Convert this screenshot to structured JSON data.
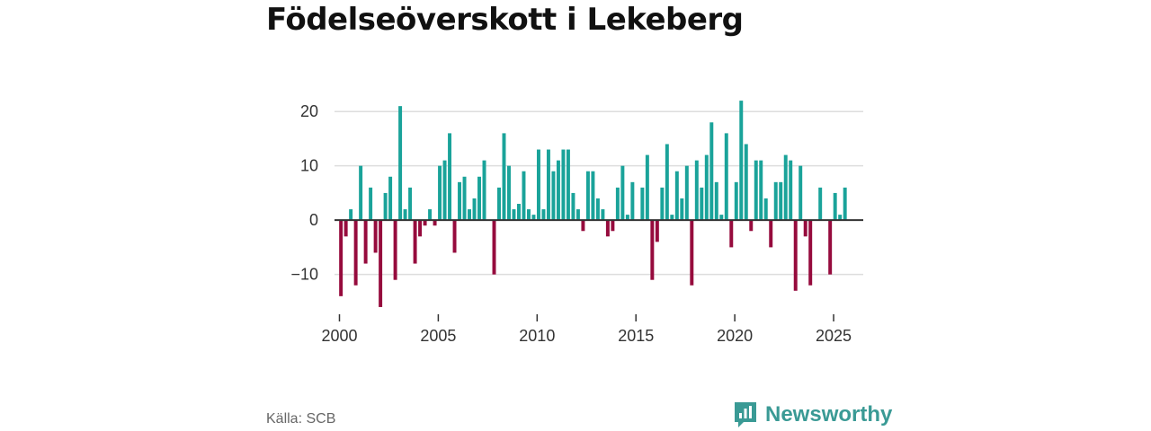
{
  "title": "Födelseöverskott i Lekeberg",
  "source": "Källa: SCB",
  "brand": {
    "name": "Newsworthy",
    "icon": "newsworthy-logo-icon",
    "color": "#3a9a95"
  },
  "colors": {
    "positive": "#1aa39a",
    "negative": "#960b3d",
    "grid": "#dddddd",
    "zero": "#333333"
  },
  "chart_data": {
    "type": "bar",
    "title": "Födelseöverskott i Lekeberg",
    "xlabel": "",
    "ylabel": "",
    "frequency": "quarterly",
    "start": "2000 Q1",
    "xlim": [
      1999.75,
      2026.5
    ],
    "ylim": [
      -17,
      24
    ],
    "xticks": [
      2000,
      2005,
      2010,
      2015,
      2020,
      2025
    ],
    "yticks": [
      -10,
      0,
      10,
      20
    ],
    "ytick_labels": [
      "−10",
      "0",
      "10",
      "20"
    ],
    "grid": true,
    "legend": "none",
    "values": [
      -14,
      -3,
      2,
      -12,
      10,
      -8,
      6,
      -6,
      -16,
      5,
      8,
      -11,
      21,
      2,
      6,
      -8,
      -3,
      -1,
      2,
      -1,
      10,
      11,
      16,
      -6,
      7,
      8,
      2,
      4,
      8,
      11,
      0,
      -10,
      6,
      16,
      10,
      2,
      3,
      9,
      2,
      1,
      13,
      2,
      13,
      9,
      11,
      13,
      13,
      5,
      2,
      -2,
      9,
      9,
      4,
      2,
      -3,
      -2,
      6,
      10,
      1,
      7,
      0,
      6,
      12,
      -11,
      -4,
      6,
      14,
      1,
      9,
      4,
      10,
      -12,
      11,
      6,
      12,
      18,
      7,
      1,
      16,
      -5,
      7,
      22,
      14,
      -2,
      11,
      11,
      4,
      -5,
      7,
      7,
      12,
      11,
      -13,
      10,
      -3,
      -12,
      0,
      6,
      0,
      -10,
      5,
      1,
      6
    ]
  }
}
